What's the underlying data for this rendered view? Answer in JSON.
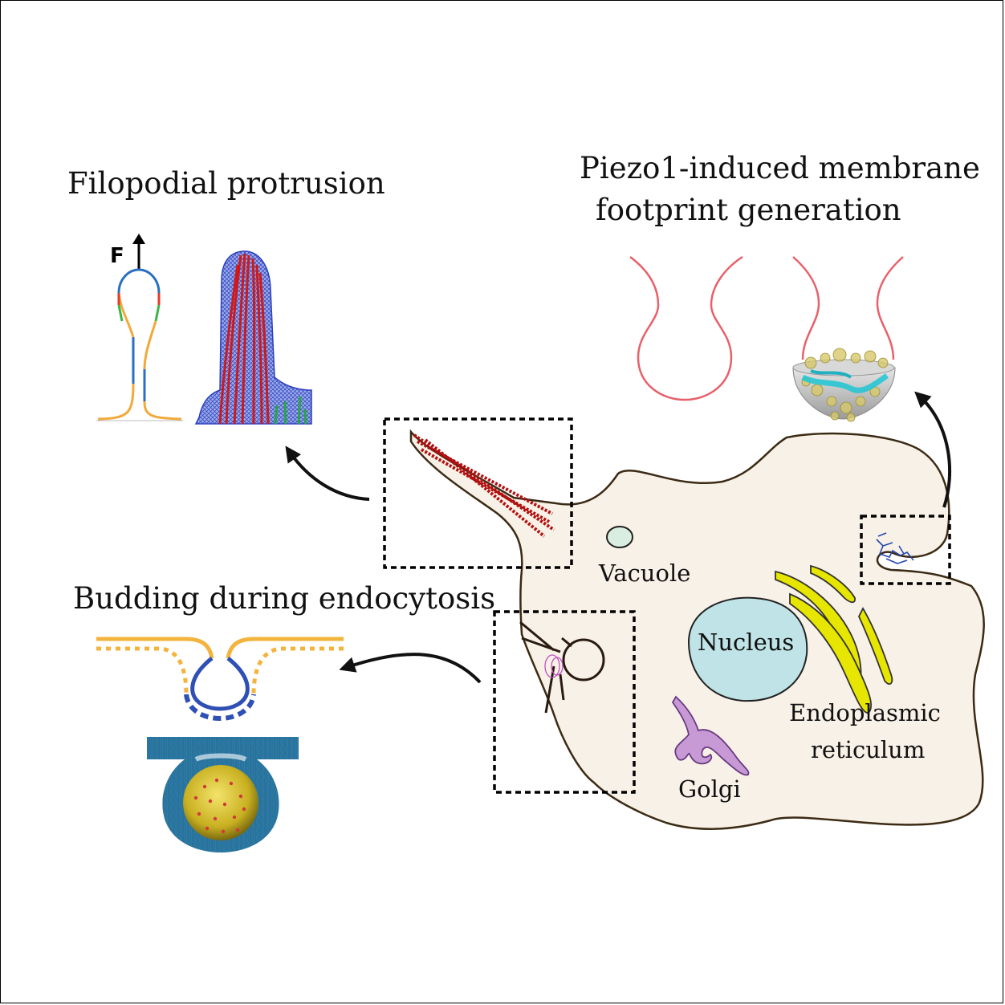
{
  "titles": {
    "filopodial": "Filopodial protrusion",
    "piezo_line1": "Piezo1-induced membrane",
    "piezo_line2": "footprint generation",
    "budding": "Budding during endocytosis"
  },
  "force_label": "F",
  "organelles": {
    "vacuole": "Vacuole",
    "nucleus": "Nucleus",
    "er_line1": "Endoplasmic",
    "er_line2": "reticulum",
    "golgi": "Golgi"
  },
  "colors": {
    "cell_fill": "#f8f1e7",
    "nucleus_fill": "#bfe3e6",
    "vacuole_fill": "#d9eee0",
    "er_fill": "#e6e600",
    "golgi_fill": "#c79ad6",
    "membrane_red": "#e8606a",
    "filament_red": "#c81818",
    "mesh_blue": "#3a55c8",
    "bud_orange": "#f2b43c",
    "bud_blue": "#2e4fb4",
    "piezo_blue": "#2448b0"
  }
}
